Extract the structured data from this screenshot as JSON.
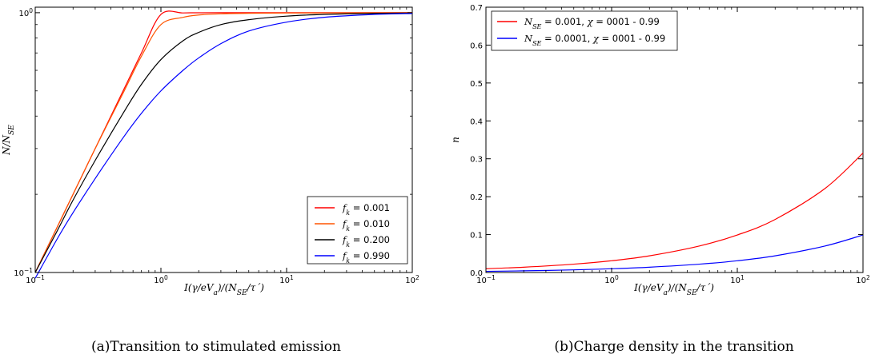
{
  "chart_data": [
    {
      "type": "line",
      "caption": "(a)Transition to stimulated emission",
      "xlabel": "I(γ/eV_a)/(N_SE/τ´)",
      "ylabel": "N/N_SE",
      "xscale": "log",
      "yscale": "log",
      "xlim": [
        0.1,
        100
      ],
      "ylim": [
        0.1,
        1.05
      ],
      "xticks": [
        "10⁻¹",
        "10⁰",
        "10¹",
        "10²"
      ],
      "yticks": [
        "10⁻¹",
        "10⁰"
      ],
      "legend_placement": "lower-right",
      "x": [
        0.1,
        0.15,
        0.2,
        0.3,
        0.5,
        0.7,
        1.0,
        1.5,
        2,
        3,
        5,
        10,
        20,
        50,
        100
      ],
      "series": [
        {
          "name": "f_k = 0.001",
          "color": "#ff0000",
          "values": [
            0.1,
            0.15,
            0.2,
            0.3,
            0.5,
            0.7,
            0.985,
            0.998,
            0.999,
            1.0,
            1.0,
            1.0,
            1.0,
            1.0,
            1.0
          ]
        },
        {
          "name": "f_k = 0.010",
          "color": "#ff5500",
          "values": [
            0.1,
            0.15,
            0.2,
            0.3,
            0.49,
            0.68,
            0.9,
            0.96,
            0.98,
            0.99,
            0.995,
            0.997,
            0.998,
            0.999,
            1.0
          ]
        },
        {
          "name": "f_k = 0.200",
          "color": "#000000",
          "values": [
            0.1,
            0.145,
            0.19,
            0.27,
            0.41,
            0.53,
            0.66,
            0.78,
            0.84,
            0.9,
            0.94,
            0.97,
            0.985,
            0.994,
            0.997
          ]
        },
        {
          "name": "f_k = 0.990",
          "color": "#0000ff",
          "values": [
            0.095,
            0.135,
            0.17,
            0.23,
            0.33,
            0.41,
            0.5,
            0.6,
            0.67,
            0.76,
            0.85,
            0.92,
            0.96,
            0.985,
            0.993
          ]
        }
      ]
    },
    {
      "type": "line",
      "caption": "(b)Charge density in the transition",
      "xlabel": "I(γ/eV_a)/(N_SE/τ´)",
      "ylabel": "n",
      "xscale": "log",
      "yscale": "linear",
      "xlim": [
        0.1,
        100
      ],
      "ylim": [
        0.0,
        0.7
      ],
      "xticks": [
        "10⁻¹",
        "10⁰",
        "10¹",
        "10²"
      ],
      "yticks": [
        "0.0",
        "0.1",
        "0.2",
        "0.3",
        "0.4",
        "0.5",
        "0.6",
        "0.7"
      ],
      "legend_placement": "top-left",
      "x": [
        0.1,
        0.2,
        0.5,
        1,
        2,
        5,
        10,
        20,
        50,
        100
      ],
      "series": [
        {
          "name": "N_SE = 0.001, χ = 0001 - 0.99",
          "color": "#ff0000",
          "values": [
            0.01,
            0.014,
            0.022,
            0.031,
            0.044,
            0.07,
            0.099,
            0.14,
            0.222,
            0.315
          ]
        },
        {
          "name": "N_SE = 0.0001, χ = 0001 - 0.99",
          "color": "#0000ff",
          "values": [
            0.003,
            0.0044,
            0.007,
            0.0099,
            0.014,
            0.022,
            0.031,
            0.044,
            0.07,
            0.099
          ]
        }
      ]
    }
  ]
}
